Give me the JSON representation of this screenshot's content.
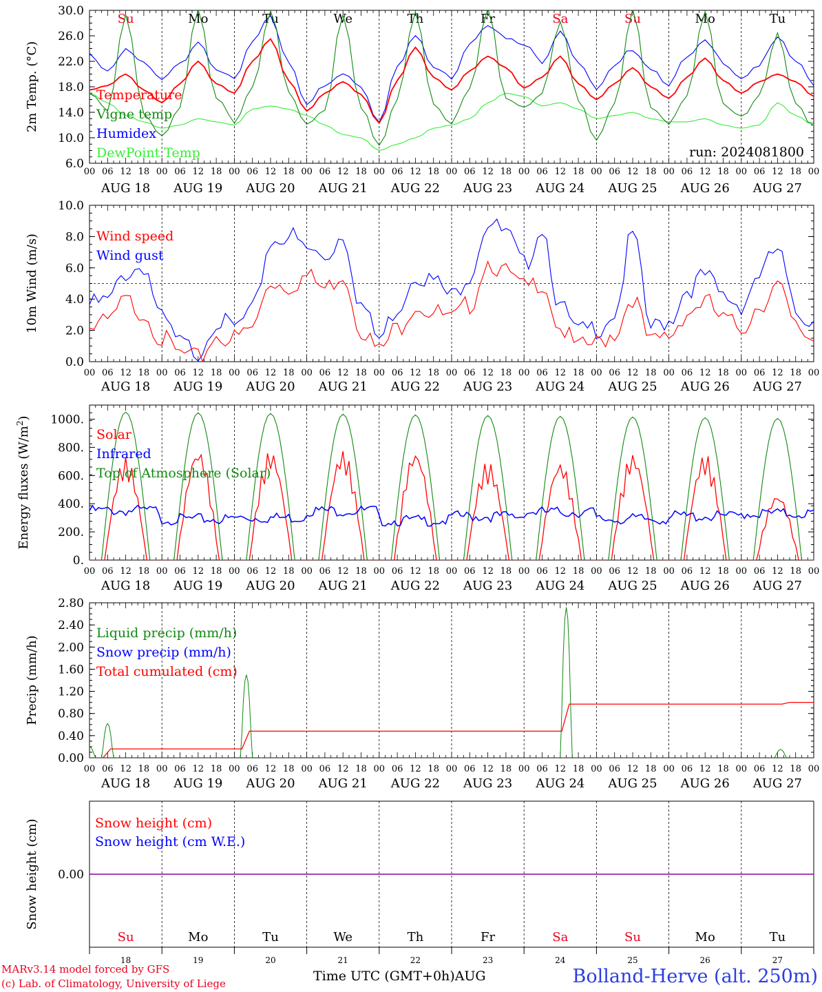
{
  "colors": {
    "red": "#ff0000",
    "green": "#118811",
    "blue": "#0000ff",
    "lightgreen": "#33ee33",
    "purple": "#8a00a0",
    "label_red": "#e8001e"
  },
  "time_axis": {
    "start": "2024-08-18 00:00 UTC",
    "step_hours": 6,
    "tick_labels": [
      "00",
      "06",
      "12",
      "18"
    ],
    "day_labels": [
      "AUG 18",
      "AUG 19",
      "AUG 20",
      "AUG 21",
      "AUG 22",
      "AUG 23",
      "AUG 24",
      "AUG 25",
      "AUG 26",
      "AUG 27"
    ],
    "weekdays": [
      "Su",
      "Mo",
      "Tu",
      "We",
      "Th",
      "Fr",
      "Sa",
      "Su",
      "Mo",
      "Tu"
    ],
    "weekday_red": [
      true,
      false,
      false,
      false,
      false,
      false,
      true,
      true,
      false,
      false
    ],
    "day_numbers": [
      "18",
      "19",
      "20",
      "21",
      "22",
      "23",
      "24",
      "25",
      "26",
      "27"
    ],
    "month_label": "AUG",
    "xlabel": "Time UTC (GMT+0h)"
  },
  "footer": {
    "model": "MARv3.14 model forced by GFS",
    "copyright": "(c) Lab. of Climatology, University of Liege",
    "station": "Bolland-Herve (alt. 250m)"
  },
  "chart_data": [
    {
      "type": "line",
      "ylabel": "2m Temp. (°C)",
      "ylim": [
        6.0,
        30.0
      ],
      "yticks": [
        "6.0",
        "10.0",
        "14.0",
        "18.0",
        "22.0",
        "26.0",
        "30.0"
      ],
      "annotation": "run: 2024081800",
      "x_hours": [
        0,
        6,
        12,
        18,
        24,
        30,
        36,
        42,
        48,
        54,
        60,
        66,
        72,
        78,
        84,
        90,
        96,
        102,
        108,
        114,
        120,
        126,
        132,
        138,
        144,
        150,
        156,
        162,
        168,
        174,
        180,
        186,
        192,
        198,
        204,
        210,
        216,
        222,
        228,
        234,
        240
      ],
      "series": [
        {
          "name": "Temperature",
          "color": "red",
          "values": [
            17.5,
            18.2,
            20.0,
            17.5,
            15.5,
            18.5,
            22.0,
            18.5,
            17.0,
            22.0,
            25.5,
            19.0,
            14.2,
            17.0,
            18.8,
            16.8,
            12.3,
            19.0,
            24.2,
            19.5,
            17.5,
            20.5,
            22.8,
            21.0,
            17.8,
            19.5,
            22.8,
            18.5,
            16.0,
            18.5,
            21.0,
            18.0,
            16.2,
            19.5,
            22.5,
            19.0,
            17.0,
            18.8,
            20.0,
            18.8,
            16.5
          ]
        },
        {
          "name": "Vigne temp",
          "color": "green",
          "values": [
            17.0,
            14.0,
            29.0,
            14.0,
            10.5,
            15.0,
            30.0,
            16.0,
            12.5,
            18.0,
            30.0,
            17.0,
            12.0,
            14.5,
            29.5,
            15.0,
            8.5,
            16.0,
            30.0,
            15.5,
            12.5,
            17.5,
            30.0,
            16.5,
            15.0,
            17.0,
            28.0,
            15.5,
            10.0,
            15.5,
            30.0,
            14.5,
            12.0,
            17.0,
            30.0,
            15.0,
            13.0,
            16.5,
            26.5,
            15.5,
            12.0
          ]
        },
        {
          "name": "Humidex",
          "color": "blue",
          "values": [
            23.2,
            20.5,
            24.0,
            21.5,
            19.0,
            21.5,
            25.3,
            21.0,
            19.0,
            25.0,
            28.8,
            22.0,
            15.5,
            18.0,
            20.0,
            18.0,
            12.5,
            21.5,
            26.0,
            21.0,
            19.5,
            25.0,
            28.0,
            25.5,
            24.5,
            22.0,
            27.0,
            22.0,
            17.5,
            21.0,
            24.0,
            21.0,
            18.5,
            22.5,
            25.0,
            22.0,
            19.5,
            21.5,
            25.5,
            22.0,
            18.5
          ]
        },
        {
          "name": "DewPoint Temp",
          "color": "lightgreen",
          "values": [
            17.0,
            15.5,
            13.5,
            12.5,
            11.5,
            12.0,
            13.0,
            12.5,
            12.0,
            14.5,
            15.0,
            14.5,
            13.5,
            12.0,
            10.5,
            10.0,
            8.0,
            9.0,
            10.0,
            11.5,
            12.0,
            13.0,
            15.5,
            17.0,
            16.5,
            15.0,
            15.5,
            14.5,
            13.0,
            13.5,
            14.0,
            13.0,
            12.5,
            12.5,
            13.0,
            12.0,
            11.5,
            12.0,
            15.5,
            13.5,
            12.0
          ]
        }
      ]
    },
    {
      "type": "line",
      "ylabel": "10m Wind (m/s)",
      "ylim": [
        0.0,
        10.0
      ],
      "yticks": [
        "0.0",
        "2.0",
        "4.0",
        "6.0",
        "8.0",
        "10.0"
      ],
      "reference_line": 5.0,
      "x_hours": [
        0,
        6,
        12,
        18,
        24,
        30,
        36,
        42,
        48,
        54,
        60,
        66,
        72,
        78,
        84,
        90,
        96,
        102,
        108,
        114,
        120,
        126,
        132,
        138,
        144,
        150,
        156,
        162,
        168,
        174,
        180,
        186,
        192,
        198,
        204,
        210,
        216,
        222,
        228,
        234,
        240
      ],
      "series": [
        {
          "name": "Wind speed",
          "color": "red",
          "values": [
            2.5,
            2.8,
            4.2,
            3.5,
            1.8,
            0.8,
            0.5,
            2.0,
            1.8,
            2.5,
            5.5,
            5.2,
            5.8,
            5.0,
            6.0,
            2.5,
            1.0,
            2.5,
            4.0,
            3.5,
            3.0,
            4.0,
            6.8,
            6.0,
            5.0,
            5.5,
            2.5,
            1.2,
            1.5,
            2.2,
            4.5,
            1.5,
            2.0,
            3.5,
            4.2,
            3.0,
            2.5,
            4.0,
            5.2,
            2.5,
            1.8
          ]
        },
        {
          "name": "Wind gust",
          "color": "blue",
          "values": [
            4.0,
            4.2,
            6.0,
            6.5,
            3.0,
            1.5,
            1.0,
            3.0,
            2.5,
            3.5,
            8.0,
            8.5,
            7.5,
            7.0,
            8.5,
            4.0,
            1.8,
            3.8,
            6.0,
            5.5,
            4.5,
            6.0,
            9.3,
            8.5,
            6.5,
            9.0,
            3.8,
            2.2,
            2.5,
            3.5,
            8.5,
            2.5,
            3.0,
            5.0,
            5.8,
            4.5,
            4.0,
            6.0,
            7.5,
            3.5,
            3.0
          ]
        }
      ]
    },
    {
      "type": "line",
      "ylabel": "Energy fluxes (W/m2)",
      "ylim": [
        0,
        1100
      ],
      "yticks": [
        "0.",
        "200.",
        "400.",
        "600.",
        "800.",
        "1000."
      ],
      "days": [
        "AUG 18",
        "AUG 19",
        "AUG 20",
        "AUG 21",
        "AUG 22",
        "AUG 23",
        "AUG 24",
        "AUG 25",
        "AUG 26",
        "AUG 27"
      ],
      "series": [
        {
          "name": "Solar",
          "color": "red",
          "daily_peak": [
            730,
            790,
            780,
            780,
            780,
            700,
            700,
            760,
            755,
            470
          ]
        },
        {
          "name": "Infrared",
          "color": "blue",
          "daily_mean": [
            370,
            310,
            320,
            370,
            300,
            330,
            360,
            310,
            330,
            350
          ]
        },
        {
          "name": "Top of Atmosphere (Solar)",
          "color": "green",
          "daily_peak": [
            1050,
            1045,
            1040,
            1035,
            1030,
            1025,
            1020,
            1015,
            1010,
            1005
          ]
        }
      ]
    },
    {
      "type": "line",
      "ylabel": "Precip (mm/h)",
      "ylim": [
        0.0,
        2.8
      ],
      "yticks": [
        "0.00",
        "0.40",
        "0.80",
        "1.20",
        "1.60",
        "2.00",
        "2.40",
        "2.80"
      ],
      "series": [
        {
          "name": "Liquid precip (mm/h)",
          "color": "green",
          "peaks": [
            {
              "hour": 0,
              "value": 0.2
            },
            {
              "hour": 6,
              "value": 0.62
            },
            {
              "hour": 52,
              "value": 1.5
            },
            {
              "hour": 158,
              "value": 2.72
            },
            {
              "hour": 229,
              "value": 0.15
            }
          ]
        },
        {
          "name": "Snow precip (mm/h)",
          "color": "blue",
          "values": [
            0.0
          ]
        },
        {
          "name": "Total cumulated (cm)",
          "color": "red",
          "steps": [
            {
              "hour": 0,
              "value": 0.0
            },
            {
              "hour": 7,
              "value": 0.16
            },
            {
              "hour": 53,
              "value": 0.48
            },
            {
              "hour": 159,
              "value": 0.97
            },
            {
              "hour": 232,
              "value": 1.0
            }
          ]
        }
      ]
    },
    {
      "type": "line",
      "ylabel": "Snow height (cm)",
      "yticks": [
        "0.00"
      ],
      "series": [
        {
          "name": "Snow height (cm)",
          "color": "red",
          "values": [
            0.0,
            0.0
          ]
        },
        {
          "name": "Snow height (cm W.E.)",
          "color": "blue",
          "values": [
            0.0,
            0.0
          ]
        }
      ]
    }
  ]
}
